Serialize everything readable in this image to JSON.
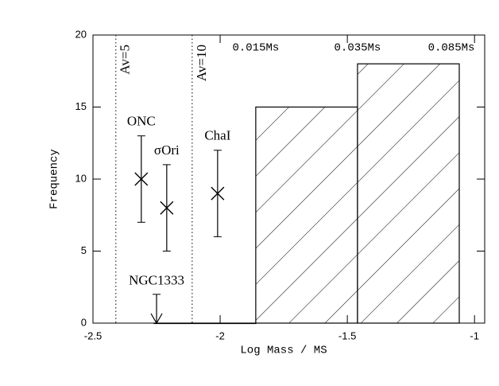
{
  "chart_data": {
    "type": "histogram",
    "xlabel": "Log Mass / MS",
    "ylabel": "Frequency",
    "bins": [
      -2.26,
      -1.86,
      -1.46,
      -1.06
    ],
    "counts": [
      0,
      15,
      18
    ],
    "edge_labels": [
      "0.015Ms",
      "0.035Ms",
      "0.085Ms"
    ],
    "hatch": true,
    "color": "#000000",
    "xlim": [
      -2.5,
      -0.96
    ],
    "ylim": [
      0,
      20
    ],
    "xticks": [
      -2.5,
      -2,
      -1.5,
      -1
    ],
    "yticks": [
      0,
      5,
      10,
      15,
      20
    ],
    "vlines": [
      {
        "x": -2.41,
        "label": "Av=5"
      },
      {
        "x": -2.11,
        "label": "Av=10"
      }
    ],
    "points": [
      {
        "name": "ONC",
        "x": -2.31,
        "y": 10,
        "err": 3
      },
      {
        "name": "σOri",
        "x": -2.21,
        "y": 8,
        "err": 3
      },
      {
        "name": "ChaI",
        "x": -2.01,
        "y": 9,
        "err": 3
      }
    ],
    "upper_limits": [
      {
        "name": "NGC1333",
        "x": -2.25,
        "y": 2
      }
    ]
  }
}
